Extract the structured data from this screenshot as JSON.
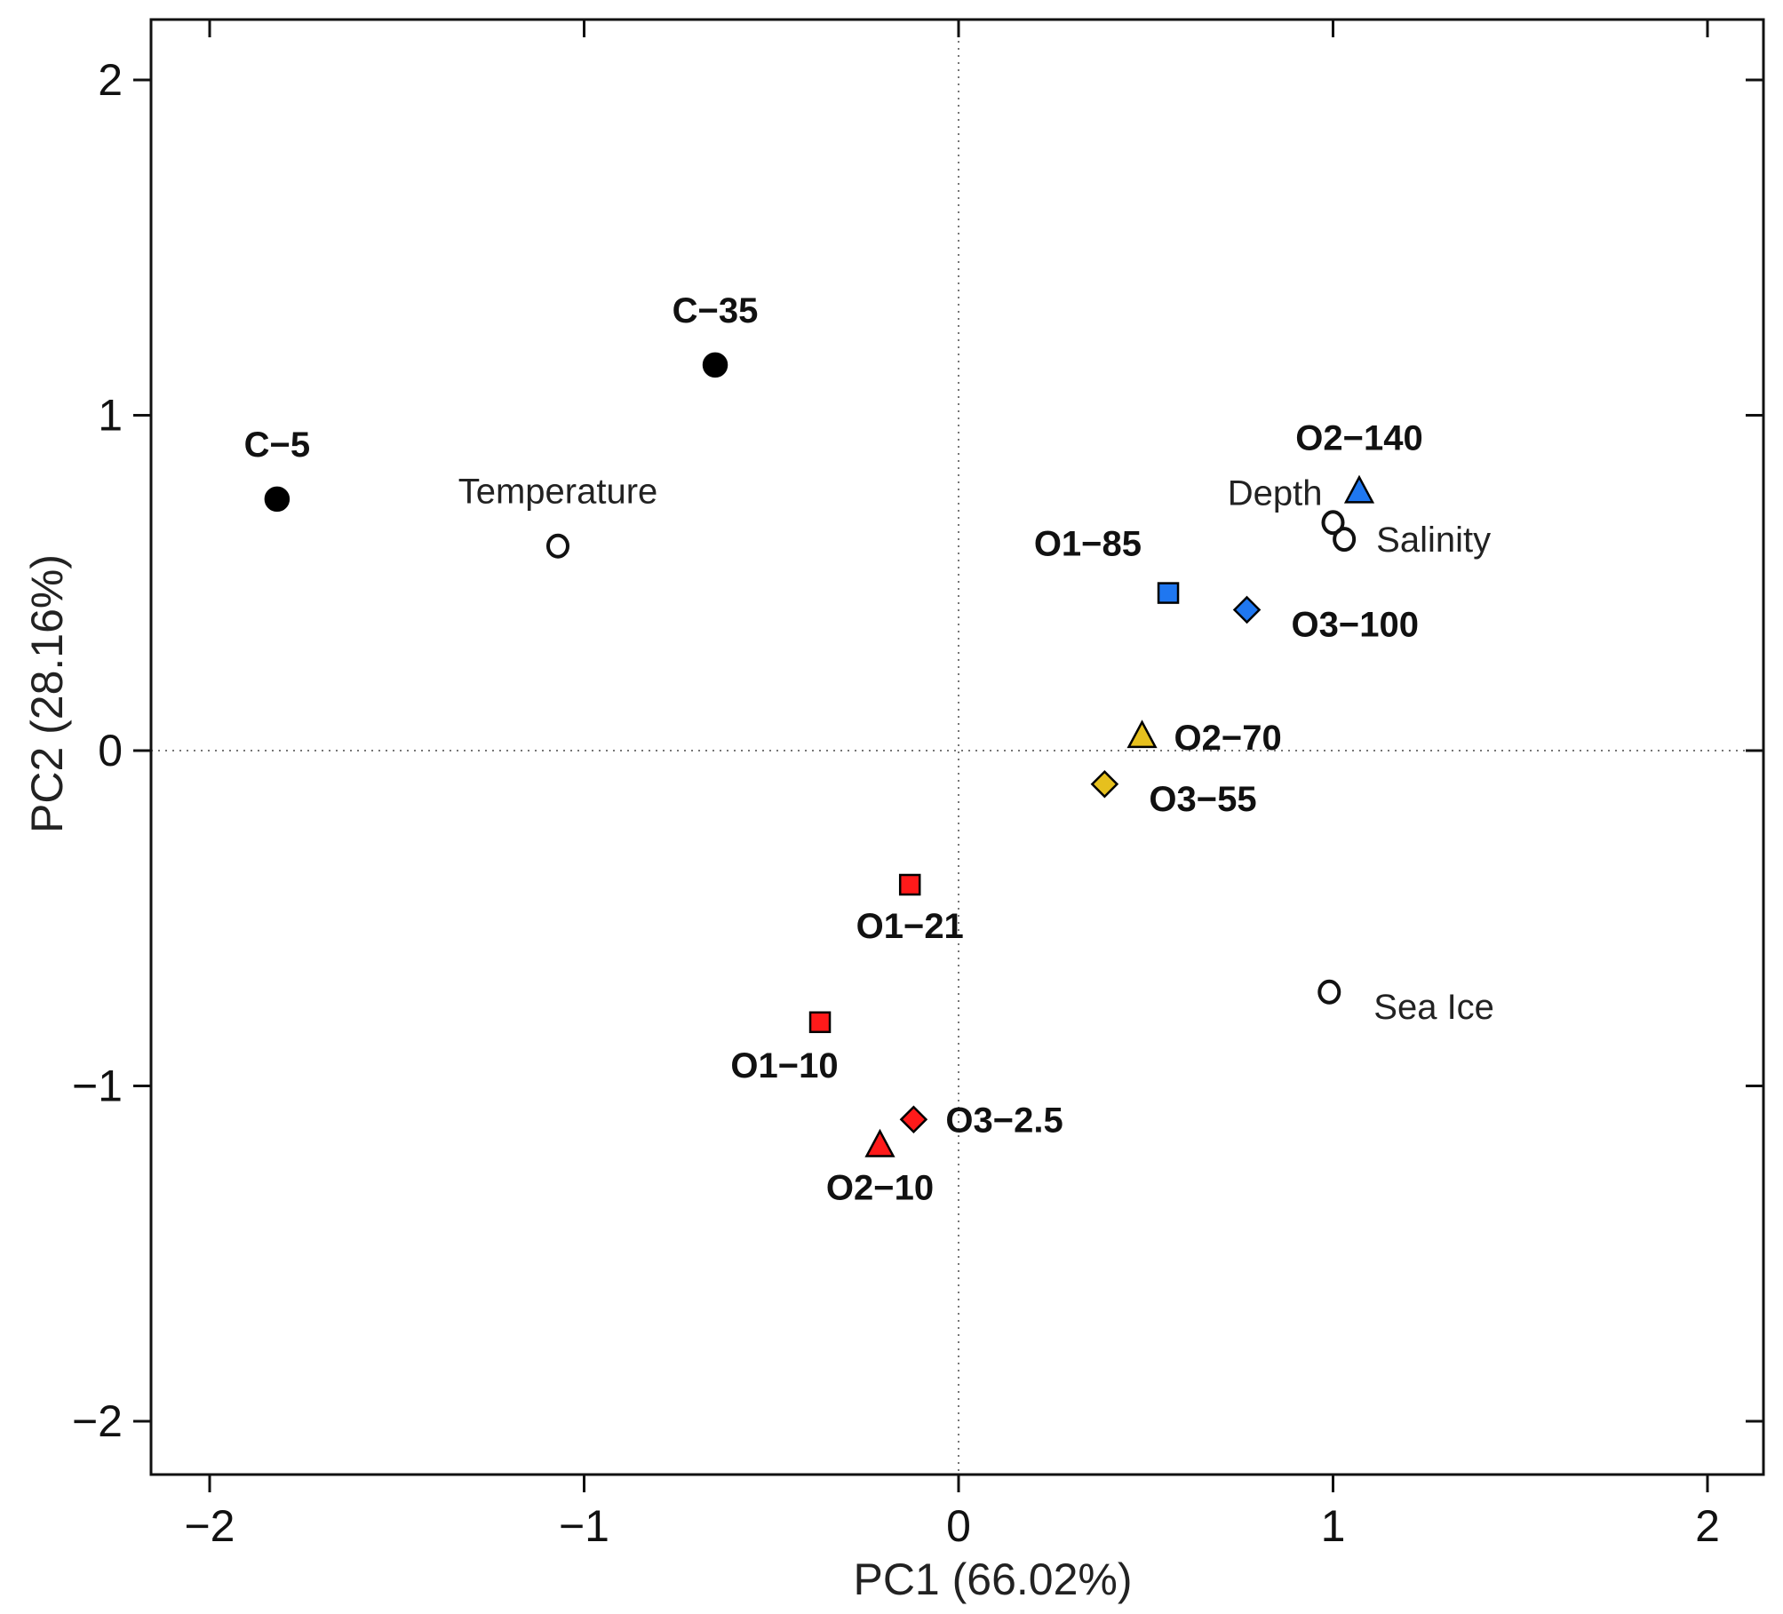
{
  "chart_data": {
    "type": "scatter",
    "xlabel": "PC1   (66.02%)",
    "ylabel": "PC2   (28.16%)",
    "xlim": [
      -2.16,
      2.16
    ],
    "ylim": [
      -2.16,
      2.16
    ],
    "x_ticks": [
      -2,
      -1,
      0,
      1,
      2
    ],
    "y_ticks": [
      -2,
      -1,
      0,
      1,
      2
    ],
    "x_tick_labels": [
      "−2",
      "−1",
      "0",
      "1",
      "2"
    ],
    "y_tick_labels": [
      "−2",
      "−1",
      "0",
      "1",
      "2"
    ],
    "reference_lines": {
      "x": 0,
      "y": 0,
      "style": "dotted"
    },
    "grid": false,
    "samples": [
      {
        "label": "C−5",
        "x": -1.82,
        "y": 0.75,
        "shape": "circle",
        "color": "#000000",
        "label_pos": "above"
      },
      {
        "label": "C−35",
        "x": -0.65,
        "y": 1.15,
        "shape": "circle",
        "color": "#000000",
        "label_pos": "above"
      },
      {
        "label": "O2−140",
        "x": 1.07,
        "y": 0.77,
        "shape": "triangle",
        "color": "#1f77f0",
        "label_pos": "above"
      },
      {
        "label": "O1−85",
        "x": 0.56,
        "y": 0.47,
        "shape": "square",
        "color": "#1f77f0",
        "label_pos": "above-left"
      },
      {
        "label": "O3−100",
        "x": 0.77,
        "y": 0.42,
        "shape": "diamond",
        "color": "#1f77f0",
        "label_pos": "below-right"
      },
      {
        "label": "O2−70",
        "x": 0.49,
        "y": 0.04,
        "shape": "triangle",
        "color": "#e6c01e",
        "label_pos": "right"
      },
      {
        "label": "O3−55",
        "x": 0.39,
        "y": -0.1,
        "shape": "diamond",
        "color": "#e6c01e",
        "label_pos": "below-right"
      },
      {
        "label": "O1−21",
        "x": -0.13,
        "y": -0.4,
        "shape": "square",
        "color": "#ff1a1a",
        "label_pos": "below"
      },
      {
        "label": "O1−10",
        "x": -0.37,
        "y": -0.81,
        "shape": "square",
        "color": "#ff1a1a",
        "label_pos": "below-left"
      },
      {
        "label": "O3−2.5",
        "x": -0.12,
        "y": -1.1,
        "shape": "diamond",
        "color": "#ff1a1a",
        "label_pos": "right"
      },
      {
        "label": "O2−10",
        "x": -0.21,
        "y": -1.18,
        "shape": "triangle",
        "color": "#ff1a1a",
        "label_pos": "below"
      }
    ],
    "variables": [
      {
        "label": "Temperature",
        "x": -1.07,
        "y": 0.61,
        "label_pos": "above"
      },
      {
        "label": "Depth",
        "x": 1.0,
        "y": 0.68,
        "label_pos": "upper-left"
      },
      {
        "label": "Salinity",
        "x": 1.03,
        "y": 0.63,
        "label_pos": "right"
      },
      {
        "label": "Sea Ice",
        "x": 0.99,
        "y": -0.72,
        "label_pos": "below-right"
      }
    ]
  }
}
